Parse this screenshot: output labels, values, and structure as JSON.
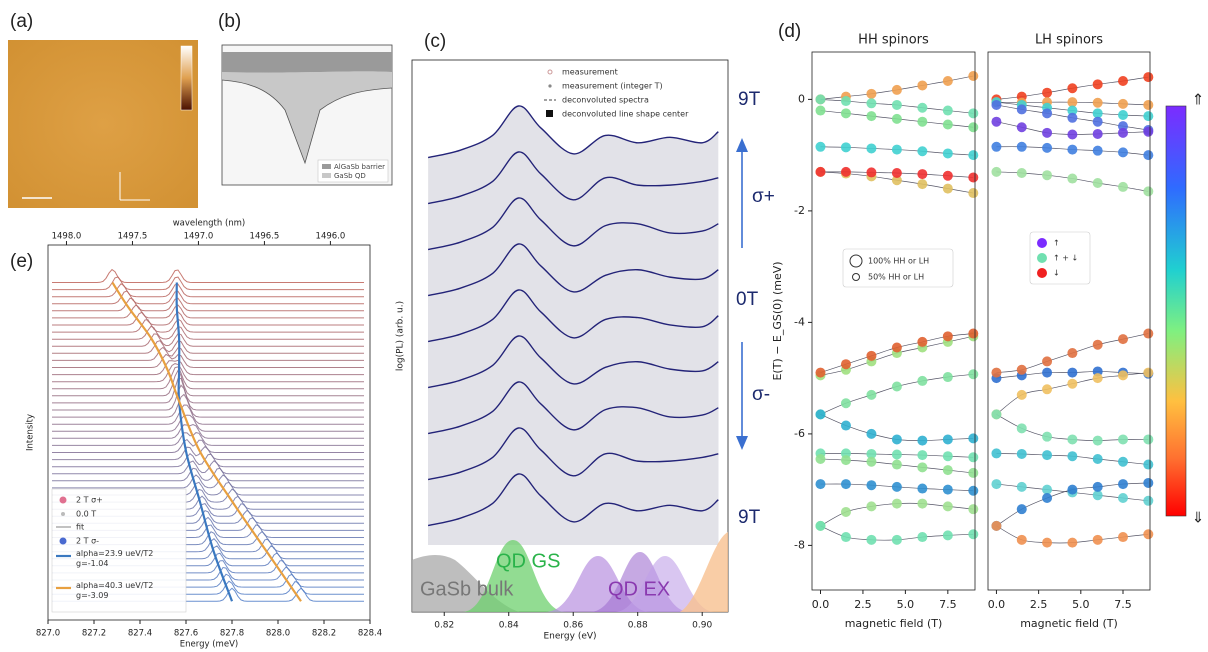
{
  "panel_labels": [
    "(a)",
    "(b)",
    "(c)",
    "(d)",
    "(e)"
  ],
  "panel_b": {
    "legend": [
      "AlGaSb barrier",
      "GaSb QD"
    ]
  },
  "chart_data": [
    {
      "type": "line",
      "xlabel": "Energy (eV)",
      "ylabel": "log(PL) (arb. u.)",
      "legend": [
        "measurement",
        "measurement (integer T)",
        "deconvoluted spectra",
        "deconvoluted line shape center"
      ],
      "annotations": {
        "field_labels": [
          "9T",
          "0T",
          "9T"
        ],
        "polarizations": [
          "σ+",
          "σ-"
        ],
        "peaks": [
          "QD GS",
          "GaSb bulk",
          "QD EX"
        ]
      },
      "x": [
        0.815,
        0.825,
        0.835,
        0.843,
        0.85,
        0.86,
        0.87,
        0.88,
        0.89,
        0.9,
        0.905
      ],
      "xlim": [
        0.81,
        0.908
      ],
      "xticks": [
        0.82,
        0.84,
        0.86,
        0.88,
        {
          "value": 0.9,
          "label": "0.90"
        }
      ],
      "ylim": [
        0,
        30
      ],
      "series": [
        {
          "color": "#232378",
          "values": [
            24.7,
            25.1,
            25.9,
            27.5,
            26.3,
            24.9,
            25.9,
            25.5,
            25.8,
            25.5,
            26.1
          ]
        },
        {
          "color": "#232378",
          "values": [
            22.2,
            22.6,
            23.4,
            25.0,
            23.8,
            22.4,
            23.6,
            23.2,
            23.2,
            23.4,
            23.6
          ]
        },
        {
          "color": "#232378",
          "values": [
            19.7,
            20.1,
            20.9,
            22.5,
            21.3,
            19.9,
            21.0,
            21.1,
            20.6,
            20.7,
            21.1
          ]
        },
        {
          "color": "#232378",
          "values": [
            17.2,
            17.6,
            18.4,
            20.0,
            18.8,
            17.4,
            18.3,
            18.6,
            18.2,
            18.1,
            18.6
          ]
        },
        {
          "color": "#232378",
          "values": [
            14.7,
            15.1,
            15.9,
            17.5,
            16.3,
            14.9,
            15.9,
            16.0,
            15.6,
            15.5,
            16.1
          ]
        },
        {
          "color": "#232378",
          "values": [
            12.2,
            12.6,
            13.4,
            15.0,
            13.8,
            12.4,
            13.3,
            13.6,
            13.2,
            13.1,
            13.6
          ]
        },
        {
          "color": "#232378",
          "values": [
            9.7,
            10.1,
            10.9,
            12.5,
            11.3,
            9.9,
            11.0,
            11.1,
            10.6,
            10.7,
            11.1
          ]
        },
        {
          "color": "#232378",
          "values": [
            7.2,
            7.6,
            8.4,
            10.0,
            8.8,
            7.4,
            8.6,
            8.2,
            8.2,
            8.4,
            8.6
          ]
        },
        {
          "color": "#232378",
          "values": [
            4.7,
            5.1,
            5.9,
            7.5,
            6.3,
            4.9,
            5.9,
            5.5,
            5.8,
            5.5,
            6.1
          ]
        }
      ]
    },
    {
      "type": "scatter",
      "title": "HH spinors",
      "xlabel": "magnetic field (T)",
      "ylabel": "E(T) − E_GS(0) (meV)",
      "legend": [
        "100% HH or LH",
        "50% HH or LH"
      ],
      "x": [
        0,
        1.5,
        3,
        4.5,
        6,
        7.5,
        9
      ],
      "xlim": [
        -0.5,
        9.1
      ],
      "xticks": [
        {
          "value": 0,
          "label": "0.0"
        },
        2.5,
        {
          "value": 5,
          "label": "5.0"
        },
        7.5
      ],
      "ylim": [
        -8.8,
        0.85
      ],
      "yticks": [
        -8,
        -6,
        -4,
        -2,
        0
      ],
      "series": [
        {
          "color": "#f0a050",
          "values": [
            0,
            0.05,
            0.1,
            0.17,
            0.25,
            0.33,
            0.42
          ]
        },
        {
          "color": "#70e0b0",
          "values": [
            0,
            -0.03,
            -0.07,
            -0.1,
            -0.15,
            -0.2,
            -0.25
          ]
        },
        {
          "color": "#80e090",
          "values": [
            -0.2,
            -0.25,
            -0.3,
            -0.35,
            -0.4,
            -0.45,
            -0.5
          ]
        },
        {
          "color": "#40d0d0",
          "values": [
            -0.85,
            -0.86,
            -0.88,
            -0.9,
            -0.93,
            -0.97,
            -1.0
          ]
        },
        {
          "color": "#e0c060",
          "values": [
            -1.3,
            -1.33,
            -1.38,
            -1.45,
            -1.52,
            -1.6,
            -1.68
          ]
        },
        {
          "color": "#f03030",
          "values": [
            -1.3,
            -1.3,
            -1.31,
            -1.32,
            -1.34,
            -1.37,
            -1.4
          ]
        },
        {
          "color": "#a0e080",
          "values": [
            -4.95,
            -4.85,
            -4.7,
            -4.55,
            -4.45,
            -4.35,
            -4.25
          ]
        },
        {
          "color": "#e06030",
          "values": [
            -4.9,
            -4.75,
            -4.6,
            -4.45,
            -4.35,
            -4.25,
            -4.2
          ]
        },
        {
          "color": "#80e0a0",
          "values": [
            -5.65,
            -5.45,
            -5.3,
            -5.15,
            -5.05,
            -4.98,
            -4.93
          ]
        },
        {
          "color": "#30b0d0",
          "values": [
            -5.65,
            -5.85,
            -6.0,
            -6.1,
            -6.12,
            -6.1,
            -6.08
          ]
        },
        {
          "color": "#70e0b0",
          "values": [
            -6.35,
            -6.35,
            -6.36,
            -6.37,
            -6.38,
            -6.4,
            -6.42
          ]
        },
        {
          "color": "#90e090",
          "values": [
            -6.45,
            -6.47,
            -6.5,
            -6.55,
            -6.6,
            -6.65,
            -6.7
          ]
        },
        {
          "color": "#3090d0",
          "values": [
            -6.9,
            -6.9,
            -6.92,
            -6.95,
            -6.98,
            -7.0,
            -7.02
          ]
        },
        {
          "color": "#a0e090",
          "values": [
            -7.65,
            -7.4,
            -7.3,
            -7.25,
            -7.25,
            -7.3,
            -7.35
          ]
        },
        {
          "color": "#70e0b0",
          "values": [
            -7.65,
            -7.85,
            -7.9,
            -7.9,
            -7.85,
            -7.82,
            -7.8
          ]
        }
      ]
    },
    {
      "type": "scatter",
      "title": "LH spinors",
      "xlabel": "magnetic field (T)",
      "legend": [
        "↑",
        "↑ + ↓",
        "↓"
      ],
      "colorbar": [
        "⇑",
        "⇓"
      ],
      "x": [
        0,
        1.5,
        3,
        4.5,
        6,
        7.5,
        9
      ],
      "xlim": [
        -0.5,
        9.1
      ],
      "xticks": [
        {
          "value": 0,
          "label": "0.0"
        },
        2.5,
        {
          "value": 5,
          "label": "5.0"
        },
        7.5
      ],
      "ylim": [
        -8.8,
        0.85
      ],
      "series": [
        {
          "color": "#f04020",
          "values": [
            0,
            0.05,
            0.12,
            0.2,
            0.27,
            0.33,
            0.4
          ]
        },
        {
          "color": "#f0a050",
          "values": [
            -0.05,
            -0.06,
            -0.05,
            -0.05,
            -0.06,
            -0.08,
            -0.1
          ]
        },
        {
          "color": "#40d0d0",
          "values": [
            -0.05,
            -0.1,
            -0.15,
            -0.2,
            -0.25,
            -0.28,
            -0.3
          ]
        },
        {
          "color": "#5070e0",
          "values": [
            -0.1,
            -0.18,
            -0.25,
            -0.33,
            -0.4,
            -0.48,
            -0.55
          ]
        },
        {
          "color": "#7040e0",
          "values": [
            -0.4,
            -0.5,
            -0.6,
            -0.63,
            -0.62,
            -0.6,
            -0.58
          ]
        },
        {
          "color": "#4080e0",
          "values": [
            -0.85,
            -0.85,
            -0.87,
            -0.9,
            -0.92,
            -0.95,
            -1.0
          ]
        },
        {
          "color": "#a0e0a0",
          "values": [
            -1.3,
            -1.32,
            -1.36,
            -1.42,
            -1.5,
            -1.57,
            -1.65
          ]
        },
        {
          "color": "#3070d0",
          "values": [
            -5.0,
            -4.95,
            -4.9,
            -4.9,
            -4.88,
            -4.9,
            -4.92
          ]
        },
        {
          "color": "#e07040",
          "values": [
            -4.9,
            -4.85,
            -4.7,
            -4.55,
            -4.4,
            -4.3,
            -4.2
          ]
        },
        {
          "color": "#f0c060",
          "values": [
            -5.65,
            -5.3,
            -5.2,
            -5.1,
            -5.0,
            -4.95,
            -4.9
          ]
        },
        {
          "color": "#80e0b0",
          "values": [
            -5.65,
            -5.9,
            -6.05,
            -6.1,
            -6.12,
            -6.1,
            -6.1
          ]
        },
        {
          "color": "#40c0d0",
          "values": [
            -6.35,
            -6.36,
            -6.38,
            -6.4,
            -6.45,
            -6.5,
            -6.55
          ]
        },
        {
          "color": "#60d0d0",
          "values": [
            -6.9,
            -6.95,
            -7.0,
            -7.05,
            -7.1,
            -7.15,
            -7.2
          ]
        },
        {
          "color": "#3080d0",
          "values": [
            -7.65,
            -7.35,
            -7.15,
            -7.0,
            -6.95,
            -6.9,
            -6.88
          ]
        },
        {
          "color": "#f09050",
          "values": [
            -7.65,
            -7.9,
            -7.95,
            -7.95,
            -7.9,
            -7.85,
            -7.8
          ]
        }
      ]
    },
    {
      "type": "line",
      "xlabel": "Energy (meV)",
      "x2label": "wavelength (nm)",
      "ylabel": "Intensity",
      "legend": [
        "2 T σ+",
        "0.0 T",
        "fit",
        "2 T σ-"
      ],
      "xlim": [
        827.0,
        828.4
      ],
      "xticks": [
        {
          "value": 827,
          "label": "827.0"
        },
        827.2,
        827.4,
        827.6,
        827.8,
        {
          "value": 828,
          "label": "828.0"
        },
        828.2,
        828.4
      ],
      "x2lim": [
        1498.14,
        1495.7
      ],
      "x2ticks": [
        {
          "value": 1498,
          "label": "1498.0"
        },
        1497.5,
        {
          "value": 1497,
          "label": "1497.0"
        },
        1496.5,
        {
          "value": 1496,
          "label": "1496.0"
        }
      ],
      "ylim": [
        0,
        60
      ],
      "series": [
        {
          "name": "alpha=23.9 ueV/T2\ng=-1.04",
          "color": "#3a78c0",
          "x": [
            827.56,
            827.56,
            827.57,
            827.57,
            827.57,
            827.6,
            827.66,
            827.72,
            827.8
          ],
          "values": [
            54,
            50,
            45,
            40,
            35,
            27,
            19,
            11,
            3
          ]
        },
        {
          "name": "alpha=40.3 ueV/T2\ng=-3.09",
          "color": "#e8a040",
          "x": [
            827.28,
            827.35,
            827.45,
            827.52,
            827.57,
            827.66,
            827.8,
            827.95,
            828.1
          ],
          "values": [
            54,
            50,
            45,
            40,
            35,
            27,
            19,
            11,
            3
          ]
        }
      ]
    }
  ]
}
